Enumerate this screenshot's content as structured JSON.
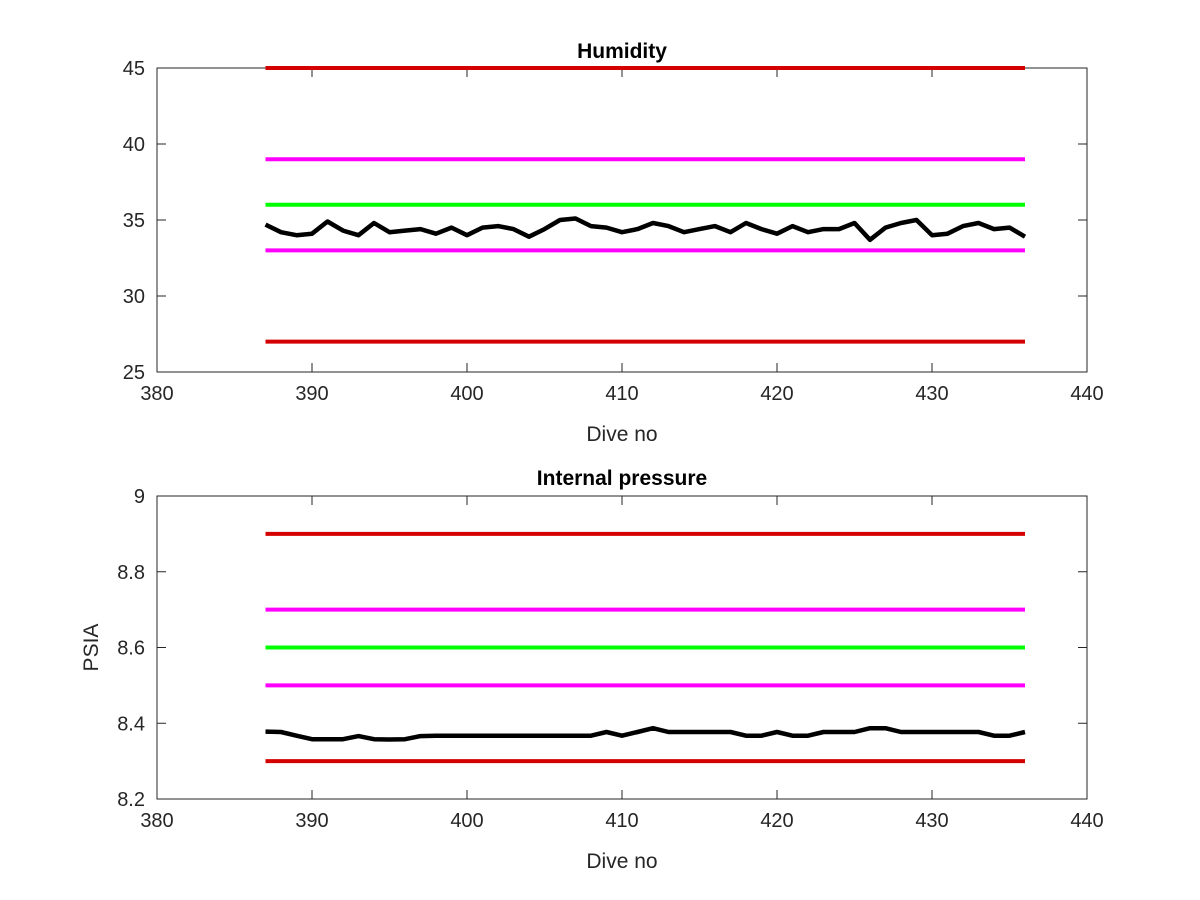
{
  "chart_data": [
    {
      "type": "line",
      "title": "Humidity",
      "xlabel": "Dive no",
      "ylabel": "",
      "xlim": [
        380,
        440
      ],
      "ylim": [
        25,
        45
      ],
      "xticks": [
        "380",
        "390",
        "400",
        "410",
        "420",
        "430",
        "440"
      ],
      "yticks": [
        "25",
        "30",
        "35",
        "40",
        "45"
      ],
      "grid": false,
      "series": [
        {
          "color": "#d40000",
          "x": [
            387,
            436
          ],
          "y": [
            45,
            45
          ]
        },
        {
          "color": "#ff00ff",
          "x": [
            387,
            436
          ],
          "y": [
            39,
            39
          ]
        },
        {
          "color": "#00ff00",
          "x": [
            387,
            436
          ],
          "y": [
            36,
            36
          ]
        },
        {
          "color": "#ff00ff",
          "x": [
            387,
            436
          ],
          "y": [
            33,
            33
          ]
        },
        {
          "color": "#d40000",
          "x": [
            387,
            436
          ],
          "y": [
            27,
            27
          ]
        },
        {
          "color": "#000000",
          "x": [
            387,
            388,
            389,
            390,
            391,
            392,
            393,
            394,
            395,
            396,
            397,
            398,
            399,
            400,
            401,
            402,
            403,
            404,
            405,
            406,
            407,
            408,
            409,
            410,
            411,
            412,
            413,
            414,
            415,
            416,
            417,
            418,
            419,
            420,
            421,
            422,
            423,
            424,
            425,
            426,
            427,
            428,
            429,
            430,
            431,
            432,
            433,
            434,
            435,
            436
          ],
          "y": [
            34.7,
            34.2,
            34.0,
            34.1,
            34.9,
            34.3,
            34.0,
            34.8,
            34.2,
            34.3,
            34.4,
            34.1,
            34.5,
            34.0,
            34.5,
            34.6,
            34.4,
            33.9,
            34.4,
            35.0,
            35.1,
            34.6,
            34.5,
            34.2,
            34.4,
            34.8,
            34.6,
            34.2,
            34.4,
            34.6,
            34.2,
            34.8,
            34.4,
            34.1,
            34.6,
            34.2,
            34.4,
            34.4,
            34.8,
            33.7,
            34.5,
            34.8,
            35.0,
            34.0,
            34.1,
            34.6,
            34.8,
            34.4,
            34.5,
            33.9
          ]
        }
      ]
    },
    {
      "type": "line",
      "title": "Internal pressure",
      "xlabel": "Dive no",
      "ylabel": "PSIA",
      "xlim": [
        380,
        440
      ],
      "ylim": [
        8.2,
        9
      ],
      "xticks": [
        "380",
        "390",
        "400",
        "410",
        "420",
        "430",
        "440"
      ],
      "yticks": [
        "8.2",
        "8.4",
        "8.6",
        "8.8",
        "9"
      ],
      "grid": false,
      "series": [
        {
          "color": "#d40000",
          "x": [
            387,
            436
          ],
          "y": [
            8.9,
            8.9
          ]
        },
        {
          "color": "#ff00ff",
          "x": [
            387,
            436
          ],
          "y": [
            8.7,
            8.7
          ]
        },
        {
          "color": "#00ff00",
          "x": [
            387,
            436
          ],
          "y": [
            8.6,
            8.6
          ]
        },
        {
          "color": "#ff00ff",
          "x": [
            387,
            436
          ],
          "y": [
            8.5,
            8.5
          ]
        },
        {
          "color": "#d40000",
          "x": [
            387,
            436
          ],
          "y": [
            8.3,
            8.3
          ]
        },
        {
          "color": "#000000",
          "x": [
            387,
            388,
            389,
            390,
            391,
            392,
            393,
            394,
            395,
            396,
            397,
            398,
            399,
            400,
            401,
            402,
            403,
            404,
            405,
            406,
            407,
            408,
            409,
            410,
            411,
            412,
            413,
            414,
            415,
            416,
            417,
            418,
            419,
            420,
            421,
            422,
            423,
            424,
            425,
            426,
            427,
            428,
            429,
            430,
            431,
            432,
            433,
            434,
            435,
            436
          ],
          "y": [
            8.378,
            8.377,
            8.367,
            8.358,
            8.358,
            8.358,
            8.366,
            8.358,
            8.357,
            8.358,
            8.366,
            8.367,
            8.367,
            8.367,
            8.367,
            8.367,
            8.367,
            8.367,
            8.367,
            8.367,
            8.367,
            8.367,
            8.377,
            8.367,
            8.377,
            8.387,
            8.377,
            8.377,
            8.377,
            8.377,
            8.377,
            8.367,
            8.367,
            8.377,
            8.367,
            8.367,
            8.377,
            8.377,
            8.377,
            8.387,
            8.387,
            8.377,
            8.377,
            8.377,
            8.377,
            8.377,
            8.377,
            8.367,
            8.367,
            8.377
          ]
        }
      ]
    }
  ]
}
